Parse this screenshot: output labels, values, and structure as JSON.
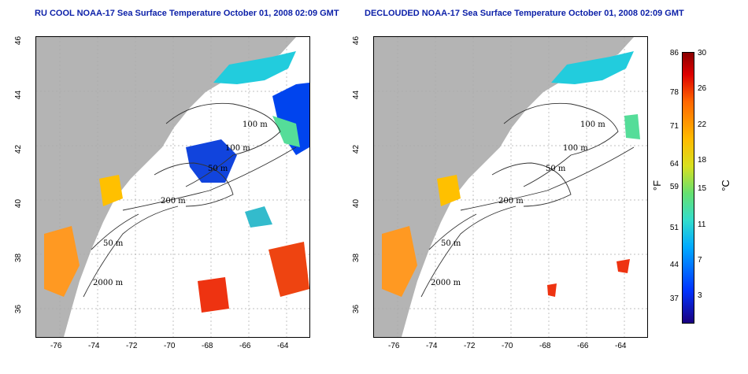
{
  "panels": [
    {
      "title": "RU COOL NOAA-17 Sea Surface Temperature October 01, 2008 02:09 GMT",
      "contours": [
        "100 m",
        "100 m",
        "50 m",
        "200 m",
        "50 m",
        "2000 m"
      ]
    },
    {
      "title": "DECLOUDED NOAA-17 Sea Surface Temperature October 01, 2008 02:09 GMT",
      "contours": [
        "100 m",
        "100 m",
        "50 m",
        "200 m",
        "50 m",
        "2000 m"
      ]
    }
  ],
  "lat_ticks": [
    "46",
    "44",
    "42",
    "40",
    "38",
    "36"
  ],
  "lon_ticks": [
    "-76",
    "-74",
    "-72",
    "-70",
    "-68",
    "-66",
    "-64"
  ],
  "colorbar": {
    "f_ticks": [
      "86",
      "78",
      "71",
      "64",
      "59",
      "51",
      "44",
      "37"
    ],
    "c_ticks": [
      "30",
      "26",
      "22",
      "18",
      "15",
      "11",
      "7",
      "3"
    ],
    "f_unit": "°F",
    "c_unit": "°C",
    "colors": [
      "#1a0080",
      "#0033ff",
      "#00aaff",
      "#33ddcc",
      "#66e070",
      "#d8e020",
      "#ffbb00",
      "#ff6600",
      "#dd0000",
      "#8a0000"
    ]
  },
  "land_color": "#b4b4b4"
}
